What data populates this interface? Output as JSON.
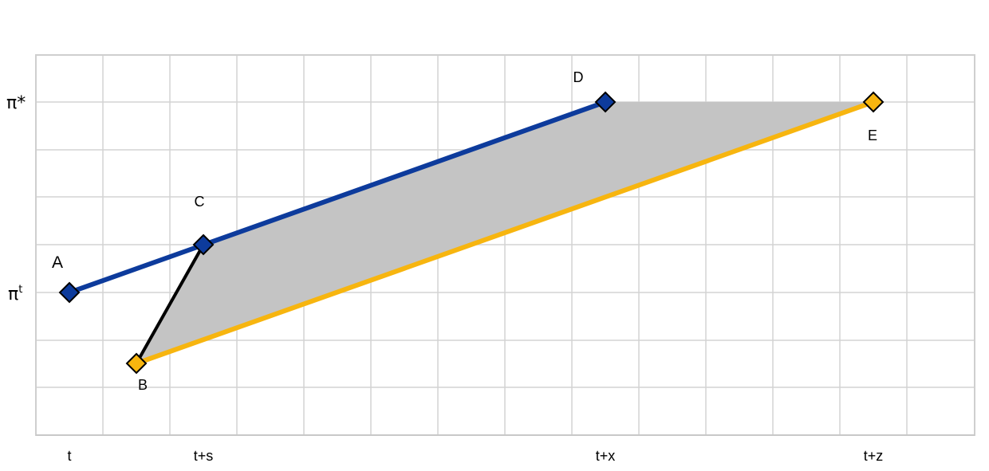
{
  "y_axis": {
    "label_top_base": "π*",
    "label_bottom_base": "π",
    "label_bottom_sup": "t"
  },
  "x_axis": {
    "ticks": [
      "t",
      "t+s",
      "t+x",
      "t+z"
    ]
  },
  "points": [
    {
      "id": "A",
      "label": "A",
      "color": "#0d3b9c"
    },
    {
      "id": "B",
      "label": "B",
      "color": "#f7b50f"
    },
    {
      "id": "C",
      "label": "C",
      "color": "#0d3b9c"
    },
    {
      "id": "D",
      "label": "D",
      "color": "#0d3b9c"
    },
    {
      "id": "E",
      "label": "E",
      "color": "#f7b50f"
    }
  ],
  "colors": {
    "blue_path": "#0d3b9c",
    "yellow_path": "#f7b50f",
    "connector": "#000000",
    "shaded_area": "#c4c4c4",
    "grid": "#d4d4d4"
  }
}
